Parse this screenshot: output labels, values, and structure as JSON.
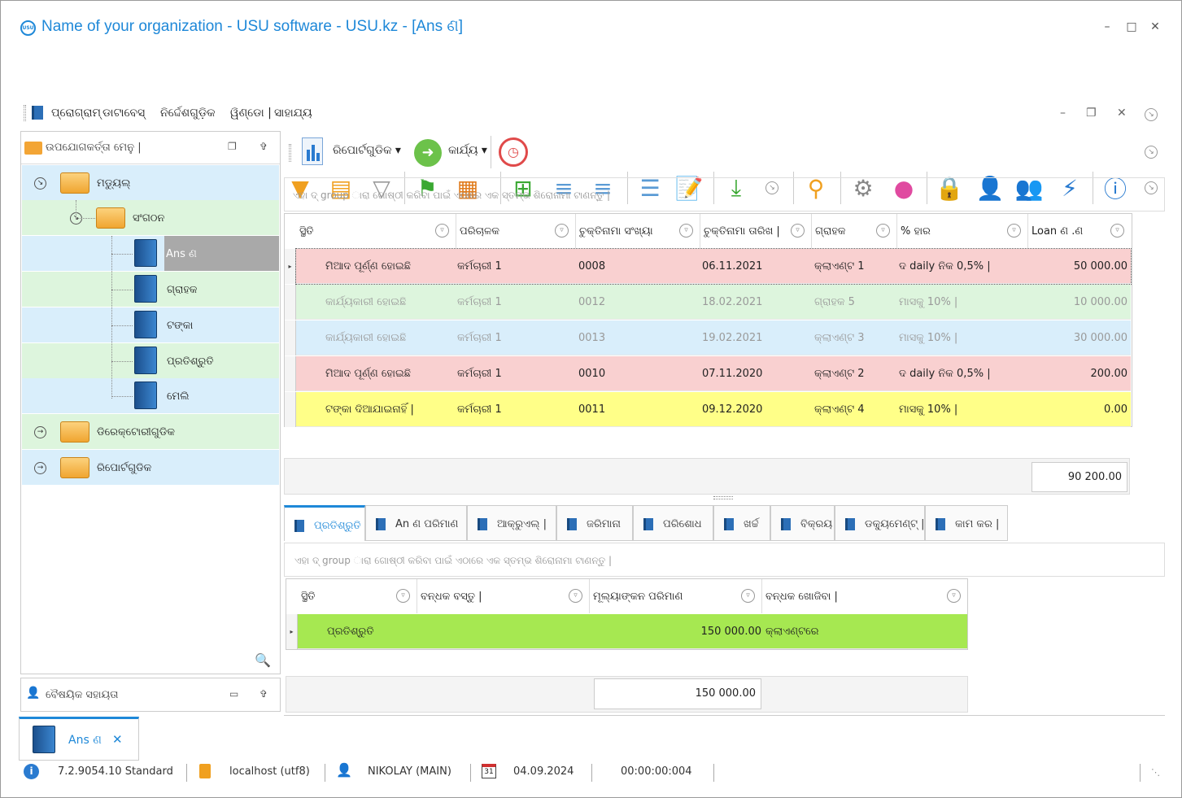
{
  "window": {
    "title": "Name of your organization - USU software - USU.kz - [Ans ଣ]",
    "logo_text": "USU"
  },
  "menu": [
    "ପ୍ରୋଗ୍ରାମ୍",
    "ଡାଟାବେସ୍",
    "ନିର୍ଦ୍ଦେଶଗୁଡ଼ିକ",
    "ୱିଣ୍ଡୋ |",
    "ସାହାଯ୍ୟ"
  ],
  "left_panel": {
    "title": "ଉପଯୋଗକର୍ତ୍ତା ମେନୁ |",
    "tree": {
      "modules": "ମଡ୍ୟୁଲ୍",
      "organization": "ସଂଗଠନ",
      "items": [
        "Ans ଣ",
        "ଗ୍ରାହକ",
        "ଟଙ୍କା",
        "ପ୍ରତିଶ୍ରୁତି",
        "ମେଲି"
      ],
      "directories": "ଡିରେକ୍ଟୋରୀଗୁଡିକ",
      "reports": "ରିପୋର୍ଟଗୁଡିକ"
    },
    "assist_title": "ବୈଷୟିକ ସହାୟତା"
  },
  "content_toolbar": {
    "reports": "ରିପୋର୍ଟଗୁଡିକ",
    "actions": "କାର୍ଯ୍ୟ"
  },
  "group_hint": "ଏହା ଦ୍ group ାରା ଗୋଷ୍ଠୀ କରିବା ପାଇଁ ଏଠାରେ ଏକ ସ୍ତମ୍ଭ ଶିରୋନାମା ଟାଣନ୍ତୁ |",
  "main_grid": {
    "columns": [
      "ସ୍ଥିତି",
      "ପରିଚାଳକ",
      "ଚୁକ୍ତିନାମା ସଂଖ୍ୟା",
      "ଚୁକ୍ତିନାମା ତାରିଖ |",
      "ଗ୍ରାହକ",
      "% ହାର",
      "Loan ଣ .ଣ"
    ],
    "rows": [
      {
        "status": "ମିଆଦ ପୂର୍ଣ୍ଣ ହୋଇଛି",
        "manager": "କର୍ମଚାରୀ 1",
        "num": "0008",
        "date": "06.11.2021",
        "client": "କ୍ଲାଏଣ୍ଟ 1",
        "rate": "ଦ daily ନିକ 0,5% |",
        "amount": "50 000.00"
      },
      {
        "status": "କାର୍ଯ୍ୟକାରୀ ହୋଇଛି",
        "manager": "କର୍ମଚାରୀ 1",
        "num": "0012",
        "date": "18.02.2021",
        "client": "ଗ୍ରାହକ 5",
        "rate": "ମାସକୁ 10% |",
        "amount": "10 000.00"
      },
      {
        "status": "କାର୍ଯ୍ୟକାରୀ ହୋଇଛି",
        "manager": "କର୍ମଚାରୀ 1",
        "num": "0013",
        "date": "19.02.2021",
        "client": "କ୍ଲାଏଣ୍ଟ 3",
        "rate": "ମାସକୁ 10% |",
        "amount": "30 000.00"
      },
      {
        "status": "ମିଆଦ ପୂର୍ଣ୍ଣ ହୋଇଛି",
        "manager": "କର୍ମଚାରୀ 1",
        "num": "0010",
        "date": "07.11.2020",
        "client": "କ୍ଲାଏଣ୍ଟ 2",
        "rate": "ଦ daily ନିକ 0,5% |",
        "amount": "200.00"
      },
      {
        "status": "ଟଙ୍କା ଦିଆଯାଇନାହିଁ |",
        "manager": "କର୍ମଚାରୀ 1",
        "num": "0011",
        "date": "09.12.2020",
        "client": "କ୍ଲାଏଣ୍ଟ 4",
        "rate": "ମାସକୁ 10% |",
        "amount": "0.00"
      }
    ],
    "row_colors": [
      "#f9d0d0",
      "#ddf5dd",
      "#d9eefb",
      "#f9d0d0",
      "#ffff88"
    ],
    "total": "90 200.00"
  },
  "tabs": [
    "ପ୍ରତିଶ୍ରୁତି",
    "An ଣ ପରିମାଣ",
    "ଆକ୍ରୁଏଲ୍ |",
    "ଜରିମାନା",
    "ପରିଶୋଧ",
    "ଖର୍ଚ୍ଚ",
    "ବିକ୍ରୟ",
    "ଡକ୍ୟୁମେଣ୍ଟ୍ |",
    "କାମ କର |"
  ],
  "sub_grid": {
    "columns": [
      "ସ୍ଥିତି",
      "ବନ୍ଧକ ବସ୍ତୁ |",
      "ମୂଲ୍ୟାଙ୍କନ ପରିମାଣ",
      "ବନ୍ଧକ ଖୋଜିବା |"
    ],
    "row": {
      "status": "ପ୍ରତିଶ୍ରୁତି",
      "value": "150 000.00",
      "location": "କ୍ଲାଏଣ୍ଟରେ"
    },
    "row_color": "#a6e851",
    "total": "150 000.00"
  },
  "bottom_tab": "Ans ଣ",
  "status_bar": {
    "version": "7.2.9054.10 Standard",
    "db": "localhost (utf8)",
    "user": "NIKOLAY (MAIN)",
    "calendar": "31",
    "date": "04.09.2024",
    "timer": "00:00:00:004"
  }
}
